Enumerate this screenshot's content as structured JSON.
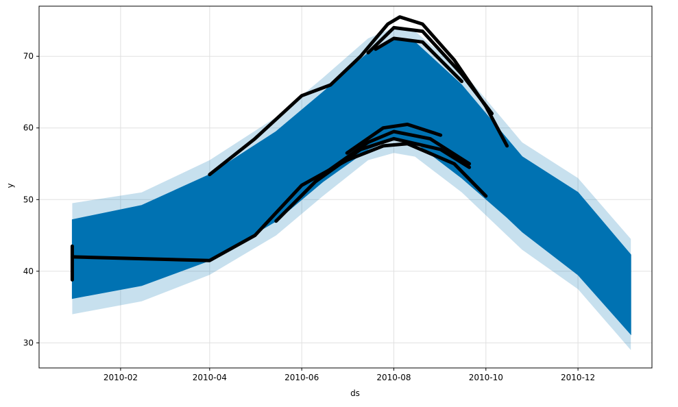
{
  "colors": {
    "forecast_line": "#0072B2",
    "uncertainty_band": "#0072B2",
    "observed_points": "#000000",
    "grid": "#e0e0e0"
  },
  "chart_data": {
    "type": "line",
    "title": "",
    "xlabel": "ds",
    "ylabel": "y",
    "xlim": [
      "2009-12-09",
      "2011-01-19"
    ],
    "ylim": [
      26.5,
      77.0
    ],
    "grid": true,
    "x_ticks": [
      {
        "date": "2010-02-01",
        "label": "2010-02"
      },
      {
        "date": "2010-04-01",
        "label": "2010-04"
      },
      {
        "date": "2010-06-01",
        "label": "2010-06"
      },
      {
        "date": "2010-08-01",
        "label": "2010-08"
      },
      {
        "date": "2010-10-01",
        "label": "2010-10"
      },
      {
        "date": "2010-12-01",
        "label": "2010-12"
      }
    ],
    "y_ticks": [
      30,
      40,
      50,
      60,
      70
    ],
    "series": [
      {
        "kind": "forecast_range",
        "points": [
          {
            "x": "2009-12-31",
            "low": 36.2,
            "high": 47.2
          },
          {
            "x": "2010-02-15",
            "low": 38.0,
            "high": 49.2
          },
          {
            "x": "2010-04-01",
            "low": 41.5,
            "high": 53.5
          },
          {
            "x": "2010-05-15",
            "low": 47.0,
            "high": 59.5
          },
          {
            "x": "2010-06-15",
            "low": 52.5,
            "high": 65.0
          },
          {
            "x": "2010-07-15",
            "low": 57.0,
            "high": 70.5
          },
          {
            "x": "2010-08-01",
            "low": 58.5,
            "high": 72.6
          },
          {
            "x": "2010-08-15",
            "low": 58.0,
            "high": 72.0
          },
          {
            "x": "2010-09-15",
            "low": 53.0,
            "high": 66.0
          },
          {
            "x": "2010-10-15",
            "low": 47.5,
            "high": 58.5
          },
          {
            "x": "2010-10-25",
            "low": 45.5,
            "high": 56.0
          },
          {
            "x": "2010-12-01",
            "low": 39.5,
            "high": 51.0
          },
          {
            "x": "2011-01-05",
            "low": 31.2,
            "high": 42.3
          }
        ]
      },
      {
        "kind": "uncertainty_band",
        "points": [
          {
            "x": "2009-12-31",
            "low": 34.0,
            "high": 49.5
          },
          {
            "x": "2010-02-15",
            "low": 35.8,
            "high": 51.0
          },
          {
            "x": "2010-04-01",
            "low": 39.5,
            "high": 55.5
          },
          {
            "x": "2010-05-15",
            "low": 45.0,
            "high": 61.5
          },
          {
            "x": "2010-06-15",
            "low": 50.5,
            "high": 67.0
          },
          {
            "x": "2010-07-15",
            "low": 55.5,
            "high": 72.5
          },
          {
            "x": "2010-08-01",
            "low": 56.5,
            "high": 74.0
          },
          {
            "x": "2010-08-15",
            "low": 56.0,
            "high": 73.5
          },
          {
            "x": "2010-09-15",
            "low": 51.0,
            "high": 68.0
          },
          {
            "x": "2010-10-15",
            "low": 45.0,
            "high": 60.5
          },
          {
            "x": "2010-10-25",
            "low": 43.0,
            "high": 58.0
          },
          {
            "x": "2010-12-01",
            "low": 37.5,
            "high": 53.0
          },
          {
            "x": "2011-01-05",
            "low": 29.0,
            "high": 44.5
          }
        ]
      },
      {
        "kind": "observed",
        "lines": [
          {
            "points": [
              [
                "2009-12-31",
                42.0
              ],
              [
                "2010-04-01",
                41.5
              ],
              [
                "2010-05-01",
                45.0
              ],
              [
                "2010-06-01",
                52.0
              ],
              [
                "2010-07-01",
                55.5
              ],
              [
                "2010-07-25",
                57.5
              ],
              [
                "2010-08-10",
                57.8
              ],
              [
                "2010-09-10",
                55.0
              ],
              [
                "2010-10-01",
                50.5
              ]
            ]
          },
          {
            "points": [
              [
                "2010-05-15",
                47.0
              ],
              [
                "2010-06-10",
                52.5
              ],
              [
                "2010-07-10",
                57.0
              ],
              [
                "2010-08-01",
                58.5
              ],
              [
                "2010-09-01",
                57.0
              ],
              [
                "2010-09-20",
                54.5
              ]
            ]
          },
          {
            "points": [
              [
                "2010-06-15",
                53.5
              ],
              [
                "2010-07-15",
                58.0
              ],
              [
                "2010-08-01",
                59.5
              ],
              [
                "2010-08-25",
                58.5
              ],
              [
                "2010-09-20",
                55.0
              ]
            ]
          },
          {
            "points": [
              [
                "2010-07-01",
                56.5
              ],
              [
                "2010-07-25",
                60.0
              ],
              [
                "2010-08-10",
                60.5
              ],
              [
                "2010-09-01",
                59.0
              ]
            ]
          },
          {
            "points": [
              [
                "2010-04-01",
                53.5
              ],
              [
                "2010-05-01",
                58.5
              ],
              [
                "2010-06-01",
                64.5
              ],
              [
                "2010-06-20",
                66.0
              ],
              [
                "2010-07-10",
                70.0
              ],
              [
                "2010-07-28",
                74.5
              ],
              [
                "2010-08-05",
                75.5
              ],
              [
                "2010-08-20",
                74.5
              ],
              [
                "2010-09-10",
                69.5
              ],
              [
                "2010-10-01",
                63.0
              ],
              [
                "2010-10-15",
                57.5
              ]
            ]
          },
          {
            "points": [
              [
                "2010-07-15",
                70.5
              ],
              [
                "2010-08-01",
                74.0
              ],
              [
                "2010-08-20",
                73.5
              ],
              [
                "2010-09-15",
                67.5
              ],
              [
                "2010-10-05",
                62.0
              ]
            ]
          },
          {
            "points": [
              [
                "2010-07-20",
                71.0
              ],
              [
                "2010-08-01",
                72.5
              ],
              [
                "2010-08-20",
                72.0
              ],
              [
                "2010-09-15",
                66.5
              ]
            ]
          },
          {
            "points": [
              [
                "2009-12-31",
                38.8
              ],
              [
                "2009-12-31",
                43.5
              ]
            ]
          }
        ]
      }
    ]
  }
}
